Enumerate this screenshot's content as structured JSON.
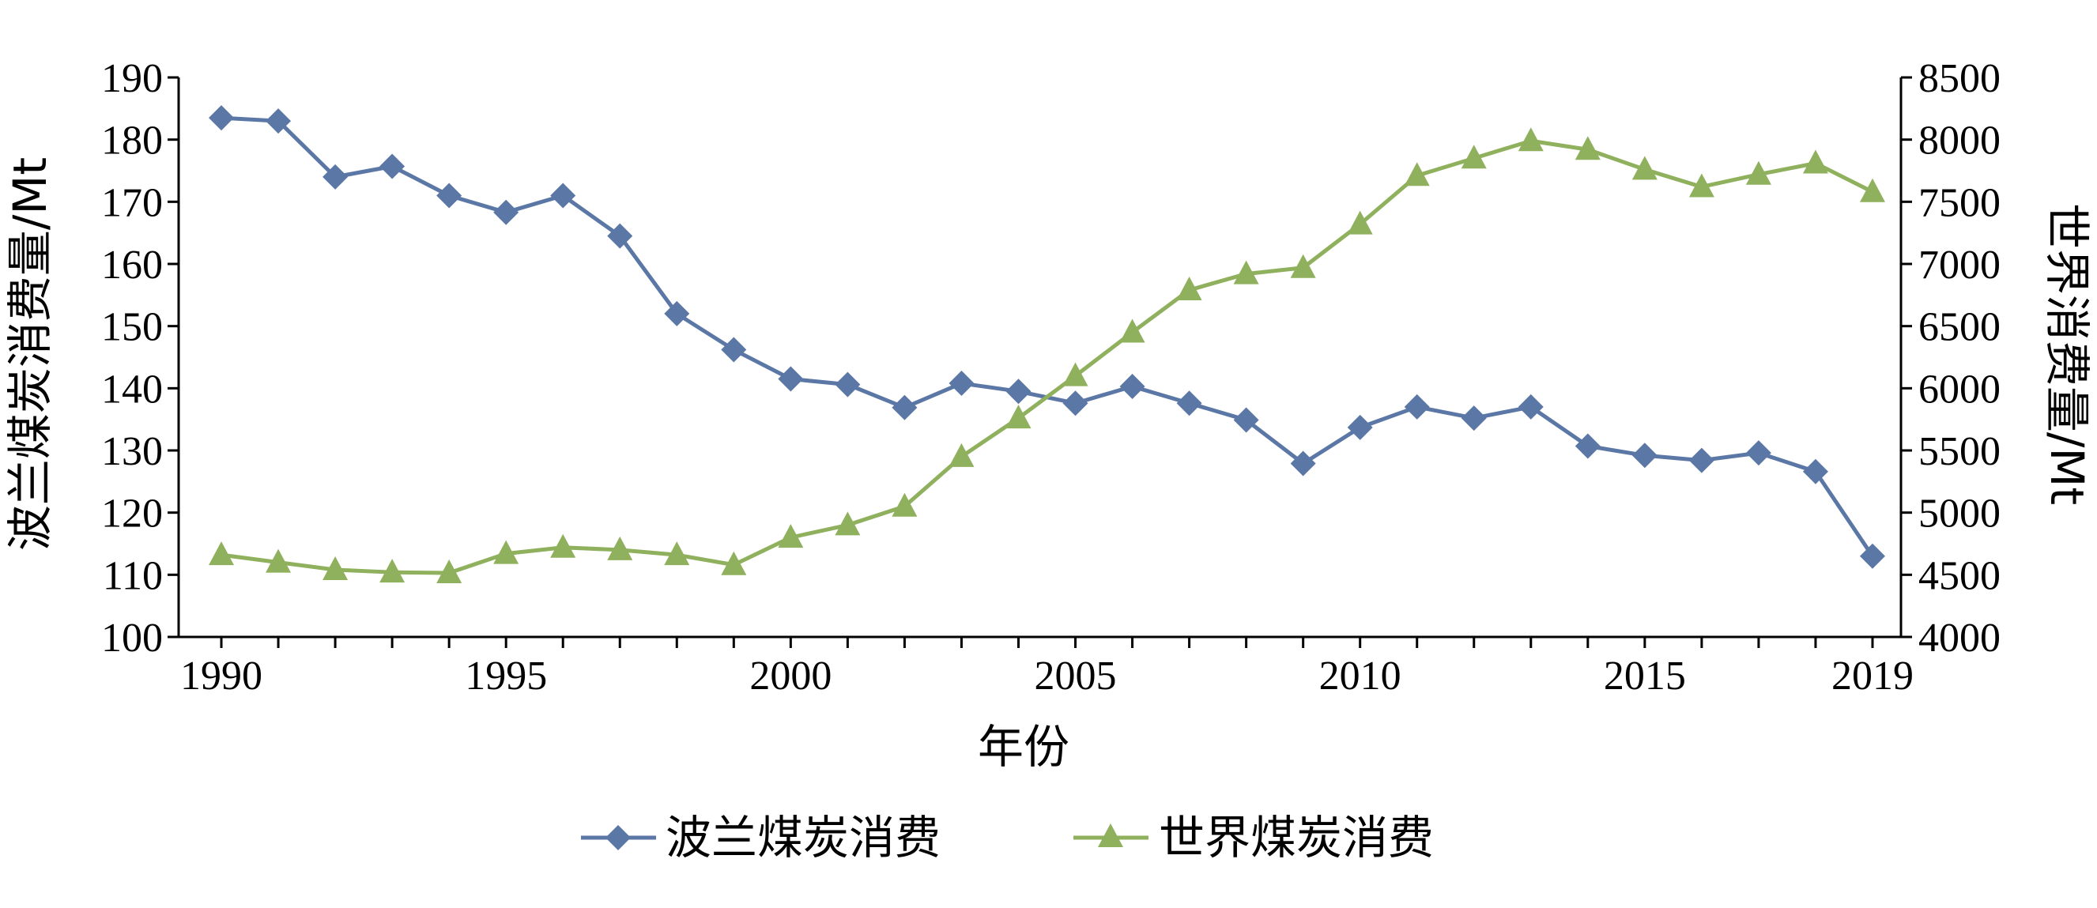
{
  "chart_data": {
    "type": "line",
    "title": "",
    "xlabel": "年份",
    "ylabel_left": "波兰煤炭消费量/Mt",
    "ylabel_right": "世界消费量/Mt",
    "x_ticks": [
      "1990",
      "1995",
      "2000",
      "2005",
      "2010",
      "2015",
      "2019"
    ],
    "x_range": [
      1990,
      2019
    ],
    "ylim_left": [
      100,
      190
    ],
    "y_ticks_left": [
      100,
      110,
      120,
      130,
      140,
      150,
      160,
      170,
      180,
      190
    ],
    "ylim_right": [
      4000,
      8500
    ],
    "y_ticks_right": [
      4000,
      4500,
      5000,
      5500,
      6000,
      6500,
      7000,
      7500,
      8000,
      8500
    ],
    "grid": false,
    "legend_position": "bottom",
    "x": [
      1990,
      1991,
      1992,
      1993,
      1994,
      1995,
      1996,
      1997,
      1998,
      1999,
      2000,
      2001,
      2002,
      2003,
      2004,
      2005,
      2006,
      2007,
      2008,
      2009,
      2010,
      2011,
      2012,
      2013,
      2014,
      2015,
      2016,
      2017,
      2018,
      2019
    ],
    "series": [
      {
        "name": "波兰煤炭消费",
        "axis": "left",
        "color": "#5B77A6",
        "marker": "diamond",
        "values": [
          183.5,
          183.0,
          174.0,
          175.7,
          171.0,
          168.3,
          171.0,
          164.5,
          152.0,
          146.2,
          141.5,
          140.6,
          136.9,
          140.8,
          139.5,
          137.6,
          140.3,
          137.6,
          134.9,
          127.9,
          133.7,
          137.0,
          135.2,
          137.0,
          130.7,
          129.2,
          128.4,
          129.6,
          126.6,
          113.0
        ]
      },
      {
        "name": "世界煤炭消费",
        "axis": "right",
        "color": "#8FB05C",
        "marker": "triangle",
        "values": [
          4660,
          4600,
          4540,
          4520,
          4515,
          4670,
          4720,
          4700,
          4660,
          4580,
          4800,
          4900,
          5050,
          5450,
          5760,
          6100,
          6450,
          6790,
          6920,
          6970,
          7320,
          7710,
          7850,
          7990,
          7920,
          7760,
          7620,
          7720,
          7810,
          7580
        ]
      }
    ]
  }
}
